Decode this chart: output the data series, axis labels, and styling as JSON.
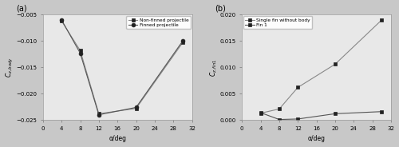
{
  "panel_a": {
    "xlabel": "α/deg",
    "ylabel": "C_{z,body}",
    "xlim": [
      0,
      32
    ],
    "ylim": [
      -0.025,
      -0.005
    ],
    "yticks": [
      -0.025,
      -0.02,
      -0.015,
      -0.01,
      -0.005
    ],
    "xticks": [
      0,
      4,
      8,
      12,
      16,
      20,
      24,
      28,
      32
    ],
    "non_finned": {
      "x": [
        4,
        8,
        12,
        20,
        30
      ],
      "y": [
        -0.0062,
        -0.0118,
        -0.0238,
        -0.0228,
        -0.0103
      ],
      "label": "Non-finned projectile",
      "marker": "s"
    },
    "finned": {
      "x": [
        4,
        8,
        12,
        20,
        30
      ],
      "y": [
        -0.006,
        -0.0123,
        -0.024,
        -0.0226,
        -0.01
      ],
      "label": "Finned projectile",
      "marker": "o"
    }
  },
  "panel_b": {
    "xlabel": "α/deg",
    "ylabel": "C_{z,fin1}",
    "xlim": [
      0,
      32
    ],
    "ylim": [
      0,
      0.02
    ],
    "yticks": [
      0.0,
      0.005,
      0.01,
      0.015,
      0.02
    ],
    "xticks": [
      0,
      4,
      8,
      12,
      16,
      20,
      24,
      28,
      32
    ],
    "single_fin": {
      "x": [
        4,
        8,
        12,
        20,
        30
      ],
      "y": [
        0.0013,
        0.0021,
        0.0062,
        0.0106,
        0.019
      ],
      "label": "Single fin without body",
      "marker": "s"
    },
    "fin1": {
      "x": [
        4,
        8,
        12,
        20,
        30
      ],
      "y": [
        0.0014,
        0.0001,
        0.0002,
        0.0012,
        0.0016
      ],
      "label": "Fin 1",
      "marker": "s"
    }
  },
  "label_a": "(a)",
  "label_b": "(b)",
  "fig_bg": "#c8c8c8",
  "plot_bg": "#e8e8e8",
  "line_color_1": "#888888",
  "line_color_2": "#555555",
  "marker_color": "#222222"
}
